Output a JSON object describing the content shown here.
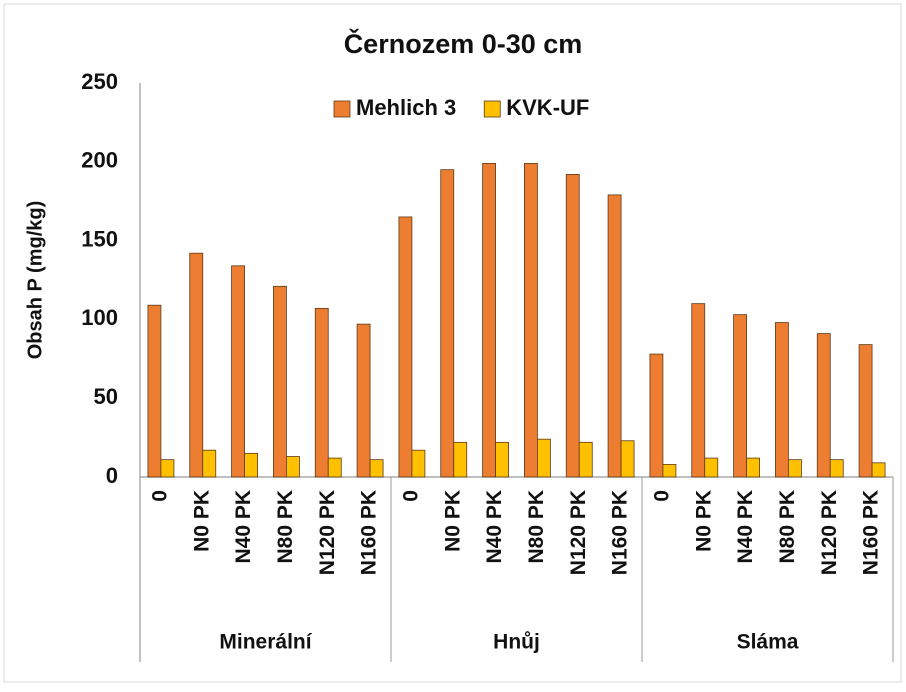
{
  "chart_data": {
    "type": "bar",
    "title": "Černozem 0-30 cm",
    "y_label": "Obsah P  (mg/kg)",
    "groups": [
      {
        "label": "Minerální",
        "categories": [
          "0",
          "N0 PK",
          "N40 PK",
          "N80 PK",
          "N120 PK",
          "N160 PK"
        ]
      },
      {
        "label": "Hnůj",
        "categories": [
          "0",
          "N0 PK",
          "N40 PK",
          "N80 PK",
          "N120 PK",
          "N160 PK"
        ]
      },
      {
        "label": "Sláma",
        "categories": [
          "0",
          "N0 PK",
          "N40 PK",
          "N80 PK",
          "N120 PK",
          "N160 PK"
        ]
      }
    ],
    "series": [
      {
        "name": "Mehlich 3",
        "color": "#ed7d31",
        "values": [
          109,
          142,
          134,
          121,
          107,
          97,
          165,
          195,
          199,
          199,
          192,
          179,
          78,
          110,
          103,
          98,
          91,
          84
        ]
      },
      {
        "name": "KVK-UF",
        "color": "#ffc000",
        "values": [
          11,
          17,
          15,
          13,
          12,
          11,
          17,
          22,
          22,
          24,
          22,
          23,
          8,
          12,
          12,
          11,
          11,
          9
        ]
      }
    ],
    "ylim": [
      0,
      250
    ],
    "yticks": [
      0,
      50,
      100,
      150,
      200,
      250
    ],
    "legend": "top"
  }
}
